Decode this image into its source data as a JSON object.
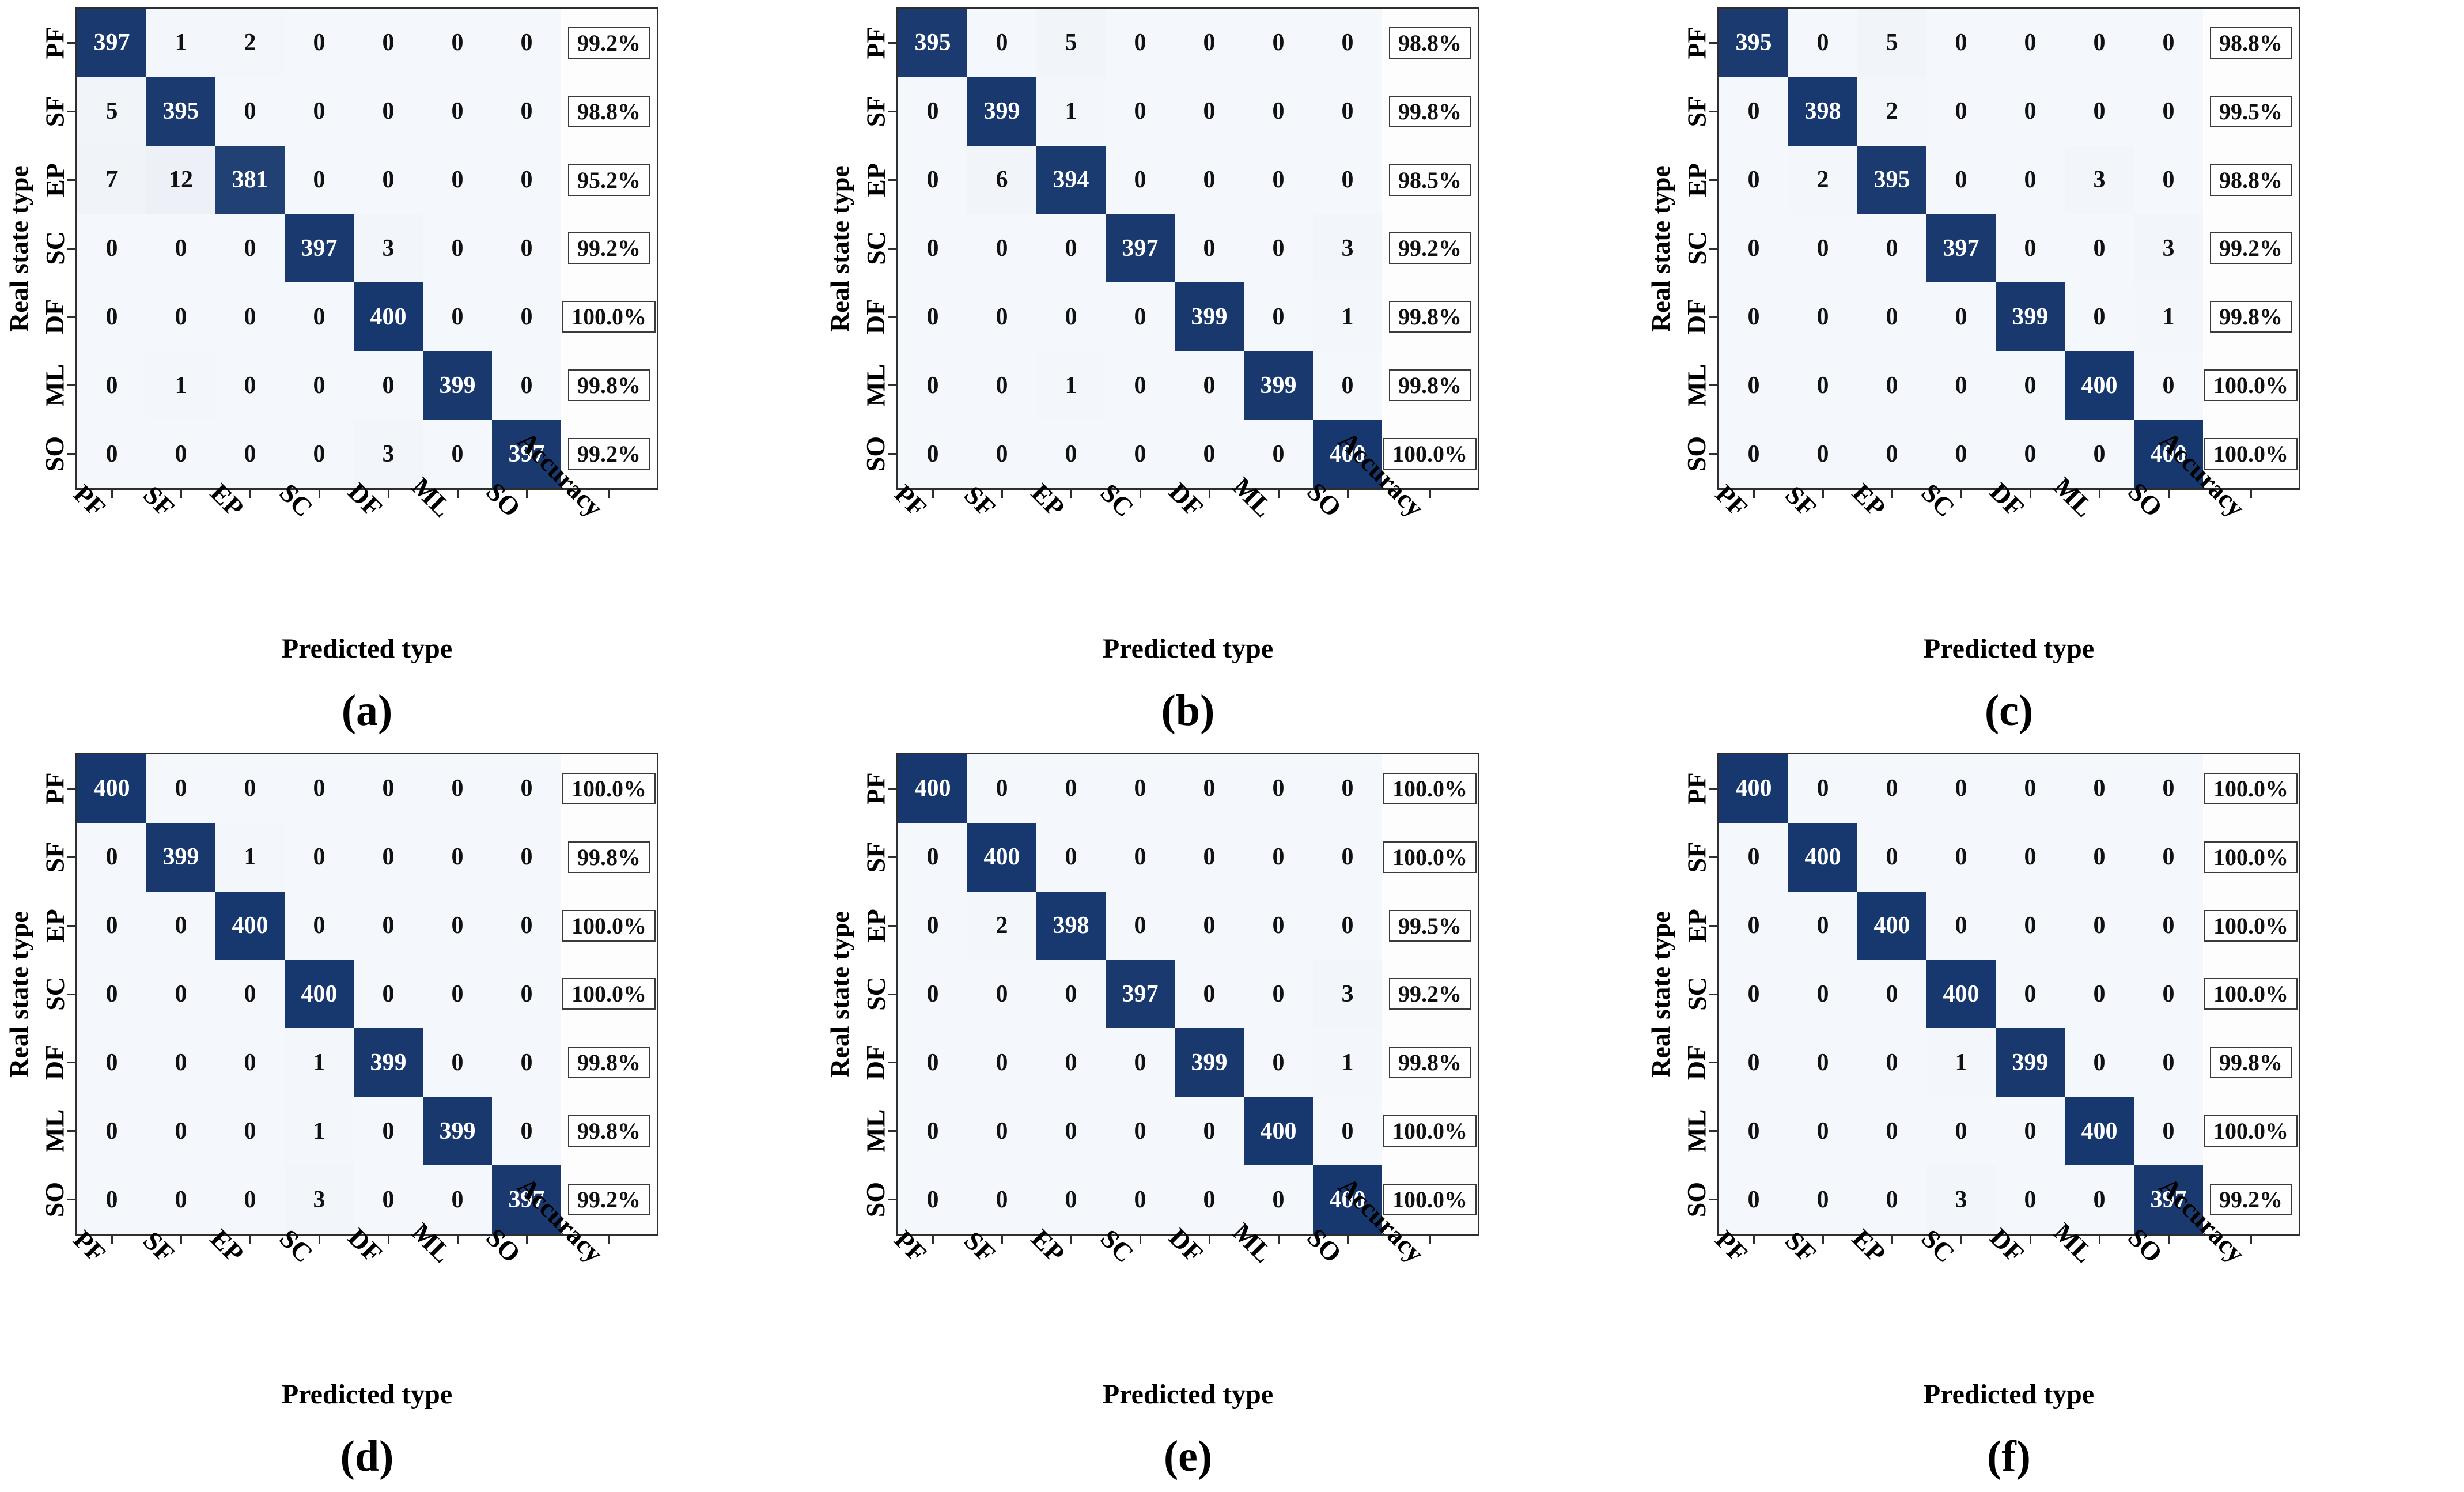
{
  "figure": {
    "ylabel": "Real state type",
    "xlabel": "Predicted type",
    "accuracy_label": "Accuracy",
    "classes": [
      "PF",
      "SF",
      "EP",
      "SC",
      "DF",
      "ML",
      "SO"
    ],
    "colors": {
      "diagonal_cell": "#17386e",
      "off_diagonal_cell": "#f4f7fb",
      "cell_text_on_dark": "#ffffff",
      "cell_text_on_light": "#111111",
      "frame": "#2e2e2e",
      "accuracy_box_border": "#3a3a3a",
      "background": "#ffffff"
    }
  },
  "chart_data": [
    {
      "type": "heatmap",
      "caption": "(a)",
      "xlabel": "Predicted type",
      "ylabel": "Real state type",
      "x_categories": [
        "PF",
        "SF",
        "EP",
        "SC",
        "DF",
        "ML",
        "SO",
        "Accuracy"
      ],
      "y_categories": [
        "PF",
        "SF",
        "EP",
        "SC",
        "DF",
        "ML",
        "SO"
      ],
      "value_range": [
        0,
        400
      ],
      "matrix": [
        [
          397,
          1,
          2,
          0,
          0,
          0,
          0
        ],
        [
          5,
          395,
          0,
          0,
          0,
          0,
          0
        ],
        [
          7,
          12,
          381,
          0,
          0,
          0,
          0
        ],
        [
          0,
          0,
          0,
          397,
          3,
          0,
          0
        ],
        [
          0,
          0,
          0,
          0,
          400,
          0,
          0
        ],
        [
          0,
          1,
          0,
          0,
          0,
          399,
          0
        ],
        [
          0,
          0,
          0,
          0,
          3,
          0,
          397
        ]
      ],
      "accuracy": [
        "99.2%",
        "98.8%",
        "95.2%",
        "99.2%",
        "100.0%",
        "99.8%",
        "99.2%"
      ]
    },
    {
      "type": "heatmap",
      "caption": "(b)",
      "xlabel": "Predicted type",
      "ylabel": "Real state type",
      "x_categories": [
        "PF",
        "SF",
        "EP",
        "SC",
        "DF",
        "ML",
        "SO",
        "Accuracy"
      ],
      "y_categories": [
        "PF",
        "SF",
        "EP",
        "SC",
        "DF",
        "ML",
        "SO"
      ],
      "value_range": [
        0,
        400
      ],
      "matrix": [
        [
          395,
          0,
          5,
          0,
          0,
          0,
          0
        ],
        [
          0,
          399,
          1,
          0,
          0,
          0,
          0
        ],
        [
          0,
          6,
          394,
          0,
          0,
          0,
          0
        ],
        [
          0,
          0,
          0,
          397,
          0,
          0,
          3
        ],
        [
          0,
          0,
          0,
          0,
          399,
          0,
          1
        ],
        [
          0,
          0,
          1,
          0,
          0,
          399,
          0
        ],
        [
          0,
          0,
          0,
          0,
          0,
          0,
          400
        ]
      ],
      "accuracy": [
        "98.8%",
        "99.8%",
        "98.5%",
        "99.2%",
        "99.8%",
        "99.8%",
        "100.0%"
      ]
    },
    {
      "type": "heatmap",
      "caption": "(c)",
      "xlabel": "Predicted type",
      "ylabel": "Real state type",
      "x_categories": [
        "PF",
        "SF",
        "EP",
        "SC",
        "DF",
        "ML",
        "SO",
        "Accuracy"
      ],
      "y_categories": [
        "PF",
        "SF",
        "EP",
        "SC",
        "DF",
        "ML",
        "SO"
      ],
      "value_range": [
        0,
        400
      ],
      "matrix": [
        [
          395,
          0,
          5,
          0,
          0,
          0,
          0
        ],
        [
          0,
          398,
          2,
          0,
          0,
          0,
          0
        ],
        [
          0,
          2,
          395,
          0,
          0,
          3,
          0
        ],
        [
          0,
          0,
          0,
          397,
          0,
          0,
          3
        ],
        [
          0,
          0,
          0,
          0,
          399,
          0,
          1
        ],
        [
          0,
          0,
          0,
          0,
          0,
          400,
          0
        ],
        [
          0,
          0,
          0,
          0,
          0,
          0,
          400
        ]
      ],
      "accuracy": [
        "98.8%",
        "99.5%",
        "98.8%",
        "99.2%",
        "99.8%",
        "100.0%",
        "100.0%"
      ]
    },
    {
      "type": "heatmap",
      "caption": "(d)",
      "xlabel": "Predicted type",
      "ylabel": "Real state type",
      "x_categories": [
        "PF",
        "SF",
        "EP",
        "SC",
        "DF",
        "ML",
        "SO",
        "Accuracy"
      ],
      "y_categories": [
        "PF",
        "SF",
        "EP",
        "SC",
        "DF",
        "ML",
        "SO"
      ],
      "value_range": [
        0,
        400
      ],
      "matrix": [
        [
          400,
          0,
          0,
          0,
          0,
          0,
          0
        ],
        [
          0,
          399,
          1,
          0,
          0,
          0,
          0
        ],
        [
          0,
          0,
          400,
          0,
          0,
          0,
          0
        ],
        [
          0,
          0,
          0,
          400,
          0,
          0,
          0
        ],
        [
          0,
          0,
          0,
          1,
          399,
          0,
          0
        ],
        [
          0,
          0,
          0,
          1,
          0,
          399,
          0
        ],
        [
          0,
          0,
          0,
          3,
          0,
          0,
          397
        ]
      ],
      "accuracy": [
        "100.0%",
        "99.8%",
        "100.0%",
        "100.0%",
        "99.8%",
        "99.8%",
        "99.2%"
      ]
    },
    {
      "type": "heatmap",
      "caption": "(e)",
      "xlabel": "Predicted type",
      "ylabel": "Real state type",
      "x_categories": [
        "PF",
        "SF",
        "EP",
        "SC",
        "DF",
        "ML",
        "SO",
        "Accuracy"
      ],
      "y_categories": [
        "PF",
        "SF",
        "EP",
        "SC",
        "DF",
        "ML",
        "SO"
      ],
      "value_range": [
        0,
        400
      ],
      "matrix": [
        [
          400,
          0,
          0,
          0,
          0,
          0,
          0
        ],
        [
          0,
          400,
          0,
          0,
          0,
          0,
          0
        ],
        [
          0,
          2,
          398,
          0,
          0,
          0,
          0
        ],
        [
          0,
          0,
          0,
          397,
          0,
          0,
          3
        ],
        [
          0,
          0,
          0,
          0,
          399,
          0,
          1
        ],
        [
          0,
          0,
          0,
          0,
          0,
          400,
          0
        ],
        [
          0,
          0,
          0,
          0,
          0,
          0,
          400
        ]
      ],
      "accuracy": [
        "100.0%",
        "100.0%",
        "99.5%",
        "99.2%",
        "99.8%",
        "100.0%",
        "100.0%"
      ]
    },
    {
      "type": "heatmap",
      "caption": "(f)",
      "xlabel": "Predicted type",
      "ylabel": "Real state type",
      "x_categories": [
        "PF",
        "SF",
        "EP",
        "SC",
        "DF",
        "ML",
        "SO",
        "Accuracy"
      ],
      "y_categories": [
        "PF",
        "SF",
        "EP",
        "SC",
        "DF",
        "ML",
        "SO"
      ],
      "value_range": [
        0,
        400
      ],
      "matrix": [
        [
          400,
          0,
          0,
          0,
          0,
          0,
          0
        ],
        [
          0,
          400,
          0,
          0,
          0,
          0,
          0
        ],
        [
          0,
          0,
          400,
          0,
          0,
          0,
          0
        ],
        [
          0,
          0,
          0,
          400,
          0,
          0,
          0
        ],
        [
          0,
          0,
          0,
          1,
          399,
          0,
          0
        ],
        [
          0,
          0,
          0,
          0,
          0,
          400,
          0
        ],
        [
          0,
          0,
          0,
          3,
          0,
          0,
          397
        ]
      ],
      "accuracy": [
        "100.0%",
        "100.0%",
        "100.0%",
        "100.0%",
        "99.8%",
        "100.0%",
        "99.2%"
      ]
    }
  ]
}
